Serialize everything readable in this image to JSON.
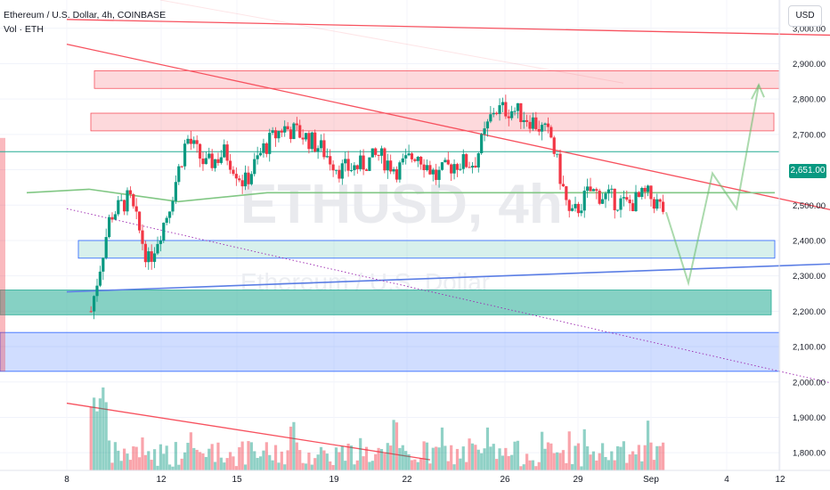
{
  "header": {
    "title": "Ethereum / U.S. Dollar, 4h, COINBASE",
    "volume_label": "Vol · ETH",
    "currency": "USD"
  },
  "watermark": {
    "symbol": "ETHUSD, 4h",
    "name": "Ethereum / U.S. Dollar"
  },
  "price_axis": {
    "ticks": [
      "3,000.00",
      "2,900.00",
      "2,800.00",
      "2,700.00",
      "2,600.00",
      "2,500.00",
      "2,400.00",
      "2,300.00",
      "2,200.00",
      "2,100.00",
      "2,000.00",
      "1,900.00",
      "1,800.00"
    ],
    "last_price": "2,651.00"
  },
  "time_axis": {
    "ticks": [
      "8",
      "12",
      "15",
      "19",
      "22",
      "26",
      "29",
      "Sep",
      "4",
      "12"
    ]
  },
  "colors": {
    "up": "#089981",
    "down": "#f23645",
    "resistance": "#f7525f",
    "support": "#22ab94",
    "blue": "#2962ff",
    "ma": "#81c784",
    "projection": "#66bb6a"
  },
  "chart_data": {
    "type": "candlestick",
    "symbol": "ETHUSD",
    "timeframe": "4h",
    "exchange": "COINBASE",
    "y_range": [
      1750,
      3080
    ],
    "last_price": 2651,
    "price_path": [
      {
        "x": "Aug 5",
        "price": 2200
      },
      {
        "x": "Aug 6",
        "price": 2470
      },
      {
        "x": "Aug 7",
        "price": 2520
      },
      {
        "x": "Aug 8",
        "price": 2340
      },
      {
        "x": "Aug 9",
        "price": 2480
      },
      {
        "x": "Aug 9",
        "price": 2690
      },
      {
        "x": "Aug 10",
        "price": 2610
      },
      {
        "x": "Aug 11",
        "price": 2650
      },
      {
        "x": "Aug 12",
        "price": 2560
      },
      {
        "x": "Aug 13",
        "price": 2660
      },
      {
        "x": "Aug 14",
        "price": 2720
      },
      {
        "x": "Aug 15",
        "price": 2700
      },
      {
        "x": "Aug 15",
        "price": 2660
      },
      {
        "x": "Aug 16",
        "price": 2600
      },
      {
        "x": "Aug 17",
        "price": 2610
      },
      {
        "x": "Aug 18",
        "price": 2640
      },
      {
        "x": "Aug 19",
        "price": 2600
      },
      {
        "x": "Aug 20",
        "price": 2650
      },
      {
        "x": "Aug 21",
        "price": 2580
      },
      {
        "x": "Aug 22",
        "price": 2620
      },
      {
        "x": "Aug 23",
        "price": 2620
      },
      {
        "x": "Aug 24",
        "price": 2770
      },
      {
        "x": "Aug 25",
        "price": 2770
      },
      {
        "x": "Aug 26",
        "price": 2740
      },
      {
        "x": "Aug 27",
        "price": 2690
      },
      {
        "x": "Aug 28",
        "price": 2460
      },
      {
        "x": "Aug 29",
        "price": 2540
      },
      {
        "x": "Aug 30",
        "price": 2520
      },
      {
        "x": "Aug 31",
        "price": 2500
      },
      {
        "x": "Sep 1",
        "price": 2530
      },
      {
        "x": "Sep 2",
        "price": 2480
      }
    ],
    "resistance_zones": [
      {
        "from": 2830,
        "to": 2880
      },
      {
        "from": 2710,
        "to": 2760
      }
    ],
    "support_zones": [
      {
        "from": 2350,
        "to": 2400
      },
      {
        "from": 2190,
        "to": 2260
      }
    ],
    "demand_zone": {
      "from": 2030,
      "to": 2140
    },
    "horizontal_lines": [
      2651
    ],
    "moving_average_level": 2535,
    "trendlines": [
      {
        "name": "upper descending",
        "from": {
          "x": "Aug 4",
          "price": 3025
        },
        "to": {
          "x": "Sep 5",
          "price": 2980
        }
      },
      {
        "name": "mid descending",
        "from": {
          "x": "Aug 4",
          "price": 2955
        },
        "to": {
          "x": "Sep 5",
          "price": 2480
        }
      },
      {
        "name": "ascending support",
        "from": {
          "x": "Aug 4",
          "price": 2255
        },
        "to": {
          "x": "Sep 5",
          "price": 2335
        }
      },
      {
        "name": "dotted descending",
        "from": {
          "x": "Aug 4",
          "price": 2490
        },
        "to": {
          "x": "Sep 5",
          "price": 1990
        }
      },
      {
        "name": "lower descending",
        "from": {
          "x": "Aug 4",
          "price": 1940
        },
        "to": {
          "x": "Aug 19",
          "price": 1780
        }
      }
    ],
    "projection_path": [
      {
        "x": "Sep 2",
        "price": 2480
      },
      {
        "x": "Sep 3",
        "price": 2280
      },
      {
        "x": "Sep 4",
        "price": 2590
      },
      {
        "x": "Sep 5",
        "price": 2490
      },
      {
        "x": "Sep 6",
        "price": 2840
      }
    ]
  }
}
